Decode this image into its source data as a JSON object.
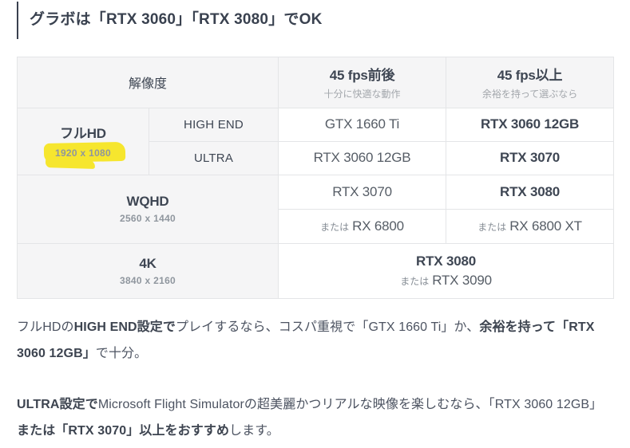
{
  "page": {
    "heading": "グラボは「RTX 3060」「RTX 3080」でOK"
  },
  "table": {
    "headers": {
      "resolution": "解像度",
      "fps45": "45 fps前後",
      "fps45_sub": "十分に快適な動作",
      "fps45plus": "45 fps以上",
      "fps45plus_sub": "余裕を持って選ぶなら"
    },
    "fullhd": {
      "label": "フルHD",
      "res": "1920 x 1080",
      "highend_label": "HIGH END",
      "ultra_label": "ULTRA",
      "highend_45": "GTX 1660 Ti",
      "highend_45plus": "RTX 3060 12GB",
      "ultra_45": "RTX 3060 12GB",
      "ultra_45plus": "RTX 3070"
    },
    "wqhd": {
      "label": "WQHD",
      "res": "2560 x 1440",
      "gpu_45": "RTX 3070",
      "alt_prefix_45": "または",
      "gpu_45_alt": "RX 6800",
      "gpu_45plus": "RTX 3080",
      "alt_prefix_45plus": "または",
      "gpu_45plus_alt": "RX 6800 XT"
    },
    "uhd4k": {
      "label": "4K",
      "res": "3840 x 2160",
      "gpu": "RTX 3080",
      "alt_prefix": "または",
      "alt": "RTX 3090"
    }
  },
  "paragraphs": {
    "p1": {
      "seg1": "フルHDの",
      "seg2_bold": "HIGH END設定で",
      "seg3": "プレイするなら、コスパ重視で「GTX 1660 Ti」か、",
      "seg4_bold": "余裕を持って「RTX 3060 12GB」",
      "seg5": "で十分。"
    },
    "p2": {
      "seg1_bold": "ULTRA設定で",
      "seg2": "Microsoft Flight Simulatorの超美麗かつリアルな映像を楽しむなら、「RTX 3060 12GB」",
      "seg3_bold": "または「RTX 3070」以上をおすすめ",
      "seg4": "します。"
    }
  },
  "colors": {
    "highlight-yellow": "#f6e62e",
    "heading-text": "#39414f",
    "table-label-bg": "#f5f5f6",
    "table-border": "#e4e5e7",
    "text-dark": "#3e4653",
    "text-regular": "#565d66",
    "text-muted": "#a3a7ac",
    "body-text": "#4c5361"
  }
}
